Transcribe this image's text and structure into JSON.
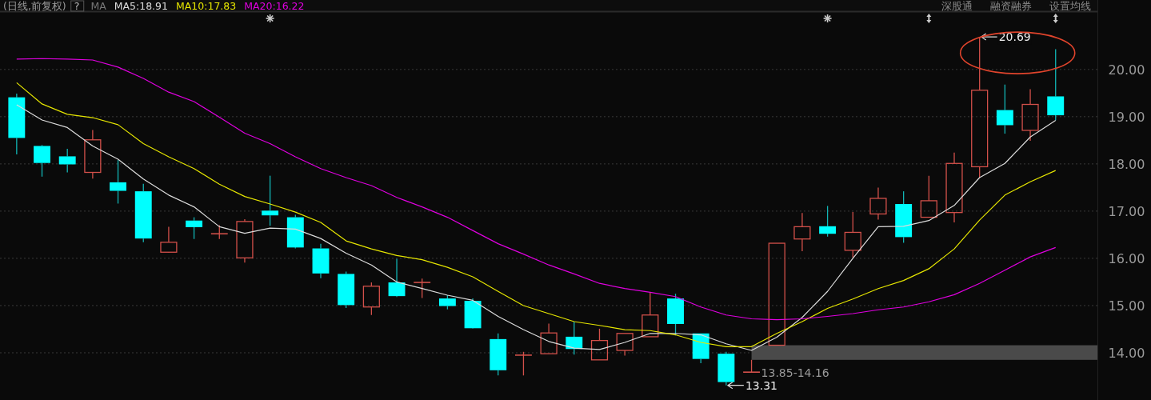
{
  "chart_data": {
    "type": "candlestick",
    "categories": [
      null,
      null,
      null,
      null,
      null,
      null,
      null,
      null,
      null,
      null,
      null,
      null,
      null,
      null,
      null,
      null,
      null,
      null,
      null,
      null,
      null,
      null,
      null,
      null,
      null,
      null,
      null,
      null,
      null,
      null,
      null,
      null,
      null,
      null,
      null,
      null,
      null,
      null,
      null,
      null,
      null,
      null
    ],
    "ohlc": [
      [
        19.41,
        19.49,
        18.2,
        18.55
      ],
      [
        18.38,
        18.4,
        17.73,
        18.02
      ],
      [
        18.16,
        18.32,
        17.82,
        17.99
      ],
      [
        17.82,
        18.72,
        17.69,
        18.51
      ],
      [
        17.61,
        18.08,
        17.16,
        17.43
      ],
      [
        17.42,
        17.58,
        16.34,
        16.42
      ],
      [
        16.13,
        16.67,
        16.12,
        16.34
      ],
      [
        16.8,
        16.87,
        16.41,
        16.66
      ],
      [
        16.52,
        16.7,
        16.41,
        16.52
      ],
      [
        16.01,
        16.83,
        15.91,
        16.78
      ],
      [
        17.01,
        17.75,
        16.69,
        16.91
      ],
      [
        16.87,
        16.92,
        16.21,
        16.23
      ],
      [
        16.21,
        16.31,
        15.58,
        15.68
      ],
      [
        15.67,
        15.72,
        14.95,
        15.01
      ],
      [
        14.97,
        15.49,
        14.8,
        15.41
      ],
      [
        15.49,
        15.99,
        15.18,
        15.2
      ],
      [
        15.49,
        15.57,
        15.16,
        15.49
      ],
      [
        15.15,
        15.22,
        14.92,
        14.99
      ],
      [
        15.1,
        15.15,
        14.51,
        14.52
      ],
      [
        14.29,
        14.41,
        13.52,
        13.63
      ],
      [
        13.95,
        14.02,
        13.52,
        13.95
      ],
      [
        13.98,
        14.62,
        13.98,
        14.42
      ],
      [
        14.34,
        14.66,
        13.96,
        14.08
      ],
      [
        13.85,
        14.51,
        13.85,
        14.26
      ],
      [
        14.05,
        14.41,
        13.94,
        14.41
      ],
      [
        14.34,
        15.27,
        14.34,
        14.8
      ],
      [
        15.15,
        15.25,
        14.37,
        14.61
      ],
      [
        14.41,
        14.41,
        13.78,
        13.87
      ],
      [
        13.98,
        14.02,
        13.31,
        13.38
      ],
      [
        13.59,
        13.85,
        13.59,
        13.59
      ],
      [
        14.16,
        16.32,
        14.16,
        16.32
      ],
      [
        16.41,
        16.96,
        16.15,
        16.67
      ],
      [
        16.68,
        17.11,
        16.46,
        16.52
      ],
      [
        16.17,
        16.98,
        16.02,
        16.55
      ],
      [
        16.94,
        17.5,
        16.82,
        17.27
      ],
      [
        17.15,
        17.42,
        16.33,
        16.45
      ],
      [
        16.87,
        17.75,
        16.87,
        17.22
      ],
      [
        16.97,
        18.24,
        16.76,
        18.01
      ],
      [
        17.94,
        20.69,
        17.71,
        19.56
      ],
      [
        19.14,
        19.68,
        18.64,
        18.82
      ],
      [
        18.71,
        19.58,
        18.49,
        19.26
      ],
      [
        19.43,
        20.43,
        18.92,
        19.03
      ]
    ],
    "series": [
      {
        "name": "MA5:18.91",
        "type": "line",
        "color": "#dcdcdc",
        "values": [
          19.25,
          18.93,
          18.77,
          18.38,
          18.1,
          17.68,
          17.34,
          17.09,
          16.67,
          16.53,
          16.64,
          16.62,
          16.42,
          16.11,
          15.86,
          15.5,
          15.36,
          15.22,
          15.11,
          14.77,
          14.49,
          14.24,
          14.1,
          14.07,
          14.22,
          14.41,
          14.41,
          14.38,
          14.19,
          14.05,
          14.33,
          14.75,
          15.3,
          16.0,
          16.67,
          16.68,
          16.8,
          17.12,
          17.71,
          18.01,
          18.57,
          18.92
        ]
      },
      {
        "name": "MA10:17.83",
        "type": "line",
        "color": "#e6e600",
        "values": [
          19.72,
          19.27,
          19.05,
          18.98,
          18.83,
          18.43,
          18.15,
          17.9,
          17.57,
          17.31,
          17.15,
          16.98,
          16.76,
          16.37,
          16.2,
          16.06,
          15.97,
          15.81,
          15.61,
          15.3,
          15.0,
          14.83,
          14.66,
          14.58,
          14.49,
          14.47,
          14.38,
          14.22,
          14.13,
          14.13,
          14.41,
          14.66,
          14.94,
          15.14,
          15.36,
          15.53,
          15.78,
          16.2,
          16.81,
          17.34,
          17.62,
          17.86
        ]
      },
      {
        "name": "MA20:16.22",
        "type": "line",
        "color": "#e000e0",
        "values": [
          20.22,
          20.23,
          20.22,
          20.2,
          20.05,
          19.81,
          19.52,
          19.32,
          18.99,
          18.65,
          18.43,
          18.15,
          17.9,
          17.71,
          17.54,
          17.29,
          17.09,
          16.87,
          16.59,
          16.31,
          16.09,
          15.86,
          15.67,
          15.47,
          15.36,
          15.28,
          15.19,
          14.97,
          14.8,
          14.72,
          14.7,
          14.72,
          14.77,
          14.83,
          14.91,
          14.97,
          15.08,
          15.23,
          15.47,
          15.75,
          16.03,
          16.23
        ]
      }
    ],
    "legend_title": "MA",
    "legend": "top left",
    "ylim": [
      13.0,
      21.2
    ],
    "yticks": [
      {
        "value": 14,
        "label": "14.00"
      },
      {
        "value": 15,
        "label": "15.00"
      },
      {
        "value": 16,
        "label": "16.00"
      },
      {
        "value": 17,
        "label": "17.00"
      },
      {
        "value": 18,
        "label": "18.00"
      },
      {
        "value": 19,
        "label": "19.00"
      },
      {
        "value": 20,
        "label": "20.00"
      }
    ],
    "grid": "y",
    "tick_labels": "y",
    "bands": [
      {
        "axis": "y",
        "from": 13.85,
        "to": 14.16,
        "label": "13.85-14.16",
        "color": "#4a4a4a"
      }
    ],
    "annotations": [
      "(日线,前复权)",
      "?",
      "深股通",
      "融资融券",
      "设置均线",
      "20.69",
      "13.31"
    ]
  }
}
